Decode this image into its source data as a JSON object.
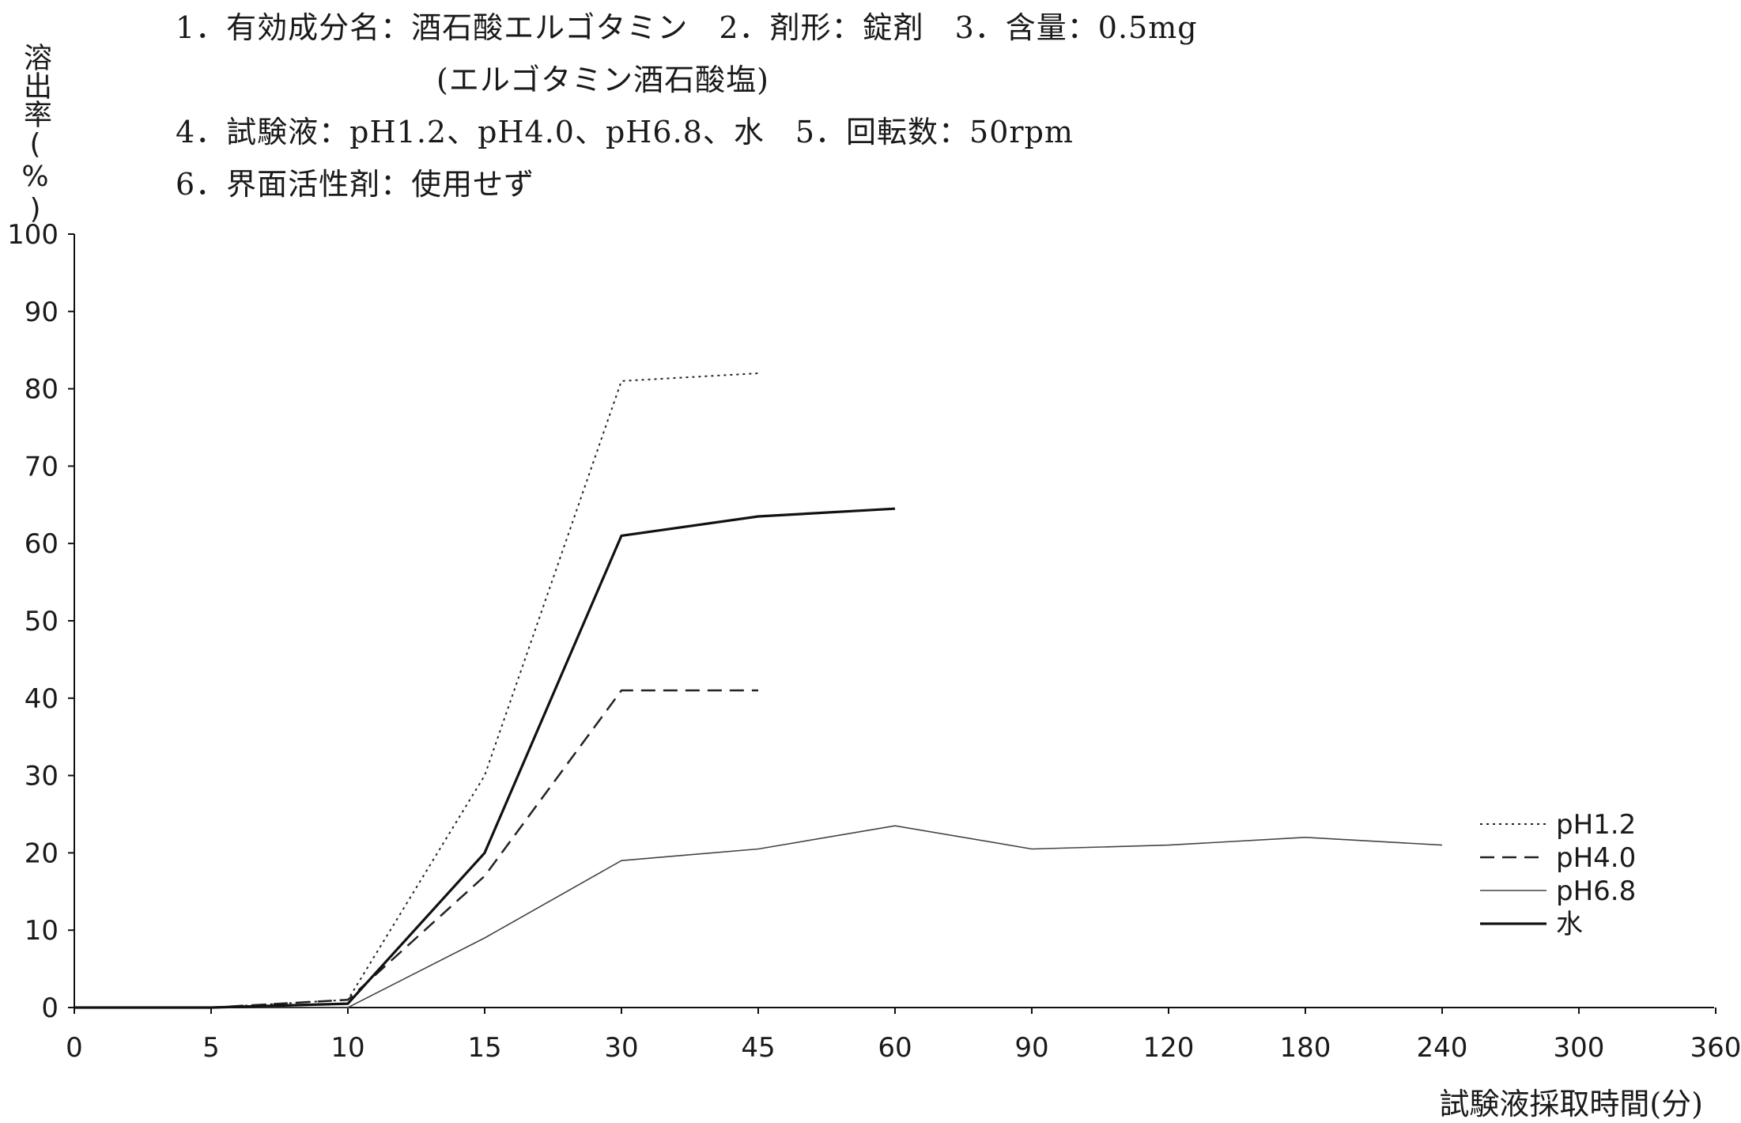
{
  "header": {
    "line1": "1．有効成分名：酒石酸エルゴタミン　2．剤形：錠剤　3．含量：0.5mg",
    "line2": "(エルゴタミン酒石酸塩)",
    "line3": "4．試験液：pH1.2、pH4.0、pH6.8、水　5．回転数：50rpm",
    "line4": "6．界面活性剤：使用せず"
  },
  "chart_data": {
    "type": "line",
    "title": "",
    "xlabel": "試験液採取時間(分)",
    "ylabel": "溶出率(%)",
    "ylim": [
      0,
      100
    ],
    "yticks": [
      "0",
      "10",
      "20",
      "30",
      "40",
      "50",
      "60",
      "70",
      "80",
      "90",
      "100"
    ],
    "categories": [
      "0",
      "5",
      "10",
      "15",
      "30",
      "45",
      "60",
      "90",
      "120",
      "180",
      "240",
      "300",
      "360"
    ],
    "grid": false,
    "legend_position": "bottom-right",
    "series": [
      {
        "name": "pH1.2",
        "style": "dotted",
        "color": "#222222",
        "values": [
          0,
          0,
          1,
          30,
          81,
          82,
          null,
          null,
          null,
          null,
          null,
          null,
          null
        ]
      },
      {
        "name": "pH4.0",
        "style": "dashed",
        "color": "#222222",
        "values": [
          0,
          0,
          1,
          17,
          41,
          41,
          null,
          null,
          null,
          null,
          null,
          null,
          null
        ]
      },
      {
        "name": "pH6.8",
        "style": "thin",
        "color": "#444444",
        "values": [
          0,
          0,
          0,
          9,
          19,
          20.5,
          23.5,
          20.5,
          21,
          22,
          21,
          null,
          null
        ]
      },
      {
        "name": "水",
        "style": "solid",
        "color": "#111111",
        "values": [
          0,
          0,
          0.5,
          20,
          61,
          63.5,
          64.5,
          null,
          null,
          null,
          null,
          null,
          null
        ]
      }
    ]
  }
}
